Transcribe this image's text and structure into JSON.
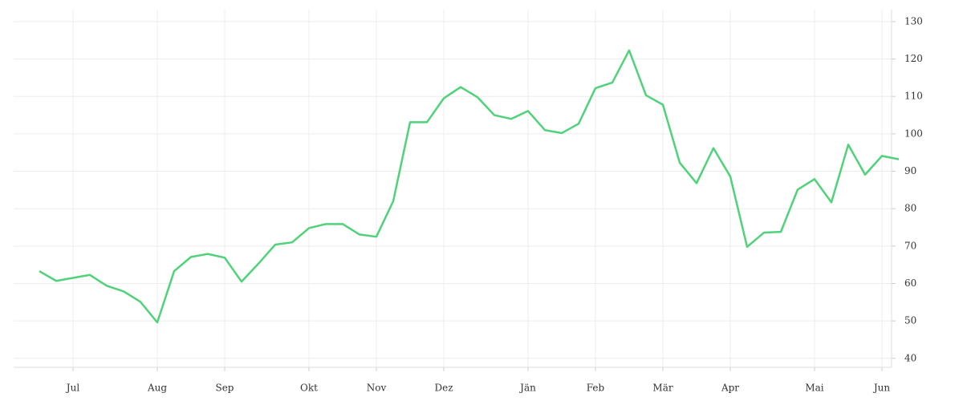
{
  "chart_data": {
    "type": "line",
    "categories": [
      null,
      null,
      "Jul",
      null,
      null,
      null,
      null,
      "Aug",
      null,
      null,
      null,
      "Sep",
      null,
      null,
      null,
      null,
      "Okt",
      null,
      null,
      null,
      "Nov",
      null,
      null,
      null,
      "Dez",
      null,
      null,
      null,
      null,
      "Jän",
      null,
      null,
      null,
      "Feb",
      null,
      null,
      null,
      "Mär",
      null,
      null,
      null,
      "Apr",
      null,
      null,
      null,
      null,
      "Mai",
      null,
      null,
      null,
      "Jun",
      null
    ],
    "values": [
      63.3,
      60.7,
      61.5,
      62.3,
      59.4,
      57.9,
      55.1,
      49.6,
      63.3,
      67.1,
      67.9,
      66.9,
      60.5,
      65.3,
      70.4,
      71.0,
      74.8,
      75.9,
      75.9,
      73.1,
      72.5,
      82.0,
      103.1,
      103.1,
      109.5,
      112.5,
      109.8,
      105.0,
      104.0,
      106.1,
      101.0,
      100.2,
      102.7,
      112.2,
      113.7,
      122.3,
      110.3,
      107.8,
      92.3,
      86.8,
      96.2,
      88.6,
      69.8,
      73.6,
      73.8,
      85.1,
      87.9,
      81.7,
      97.1,
      89.1,
      94.1,
      93.2
    ],
    "color": "#4fd27a",
    "ylim": [
      37.6,
      133.2
    ],
    "yticks": [
      40,
      50,
      60,
      70,
      80,
      90,
      100,
      110,
      120,
      130
    ],
    "grid": true
  }
}
